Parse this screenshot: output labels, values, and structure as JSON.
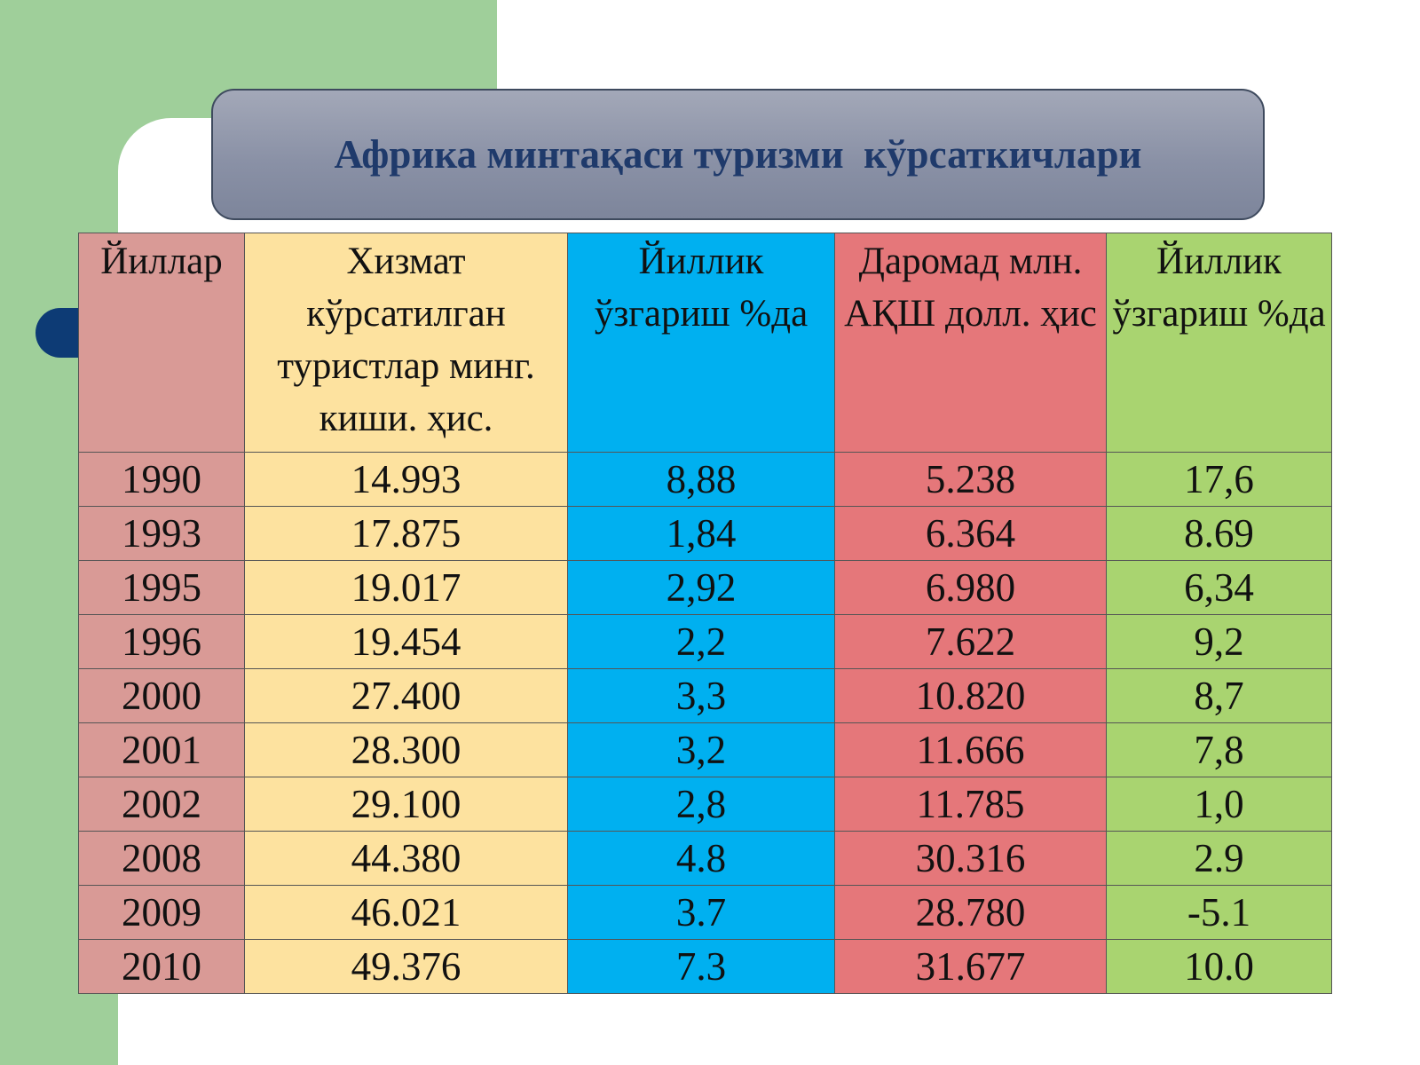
{
  "title": "Африка минтақаси туризми  кўрсаткичлари",
  "table": {
    "header": [
      "Йиллар",
      "Хизмат кўрсатилган туристлар минг. киши. ҳис.",
      "Йиллик ўзгариш %да",
      "Даромад млн. АҚШ долл. ҳис",
      "Йиллик ўзгариш %да"
    ],
    "rows": [
      [
        "1990",
        "14.993",
        "8,88",
        "5.238",
        "17,6"
      ],
      [
        "1993",
        "17.875",
        "1,84",
        "6.364",
        "8.69"
      ],
      [
        "1995",
        "19.017",
        "2,92",
        "6.980",
        "6,34"
      ],
      [
        "1996",
        "19.454",
        "2,2",
        "7.622",
        "9,2"
      ],
      [
        "2000",
        "27.400",
        "3,3",
        "10.820",
        "8,7"
      ],
      [
        "2001",
        "28.300",
        "3,2",
        "11.666",
        "7,8"
      ],
      [
        "2002",
        "29.100",
        "2,8",
        "11.785",
        "1,0"
      ],
      [
        "2008",
        "44.380",
        "4.8",
        "30.316",
        "2.9"
      ],
      [
        "2009",
        "46.021",
        "3.7",
        "28.780",
        "-5.1"
      ],
      [
        "2010",
        "49.376",
        "7.3",
        "31.677",
        "10.0"
      ]
    ]
  }
}
